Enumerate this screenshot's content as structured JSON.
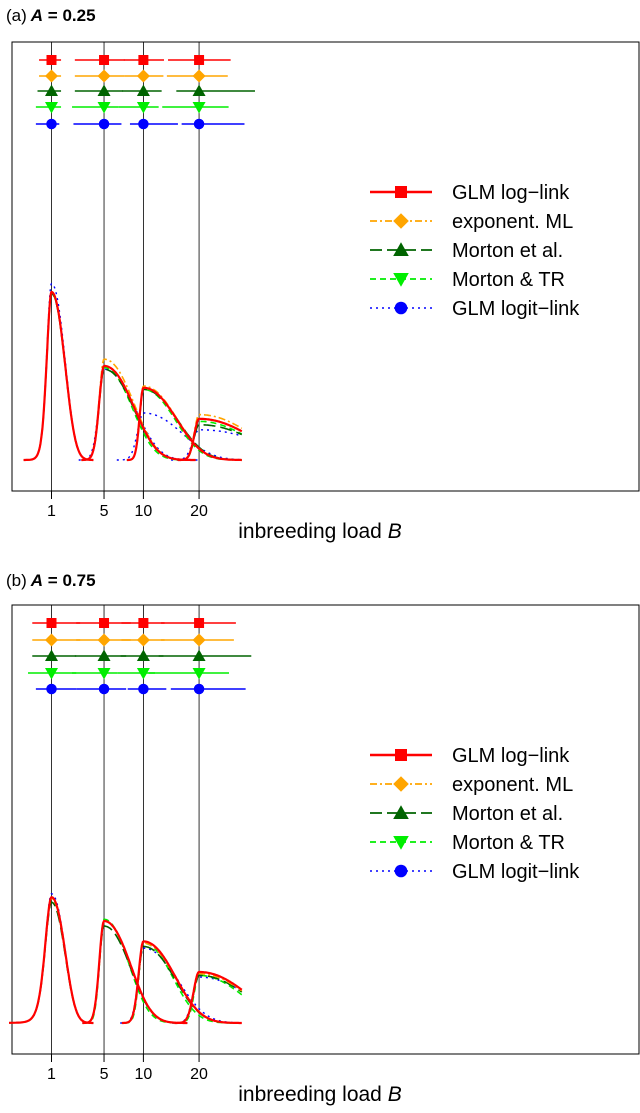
{
  "x_axis_label": "inbreeding load",
  "x_axis_symbol": "B",
  "methods": [
    {
      "name": "GLM log−link",
      "color": "#ff0000",
      "marker": "square",
      "dash": "",
      "width": 2.2
    },
    {
      "name": "exponent. ML",
      "color": "#ffa500",
      "marker": "diamond",
      "dash": "7,3,2,3",
      "width": 1.6
    },
    {
      "name": "Morton et al.",
      "color": "#006400",
      "marker": "triangle-up",
      "dash": "12,5",
      "width": 1.6
    },
    {
      "name": "Morton & TR",
      "color": "#00ee00",
      "marker": "triangle-down",
      "dash": "6,4",
      "width": 1.6
    },
    {
      "name": "GLM logit−link",
      "color": "#0000ff",
      "marker": "circle",
      "dash": "2,4",
      "width": 1.4
    }
  ],
  "chart_data": [
    {
      "type": "line",
      "panel_letter": "(a)",
      "title_var": "A",
      "title_value": "= 0.25",
      "xlabel": "inbreeding load B",
      "ylabel": "",
      "x_scale": "sqrt",
      "xlim": [
        0,
        30
      ],
      "x_ticks": [
        1,
        5,
        10,
        20
      ],
      "true_values": [
        1,
        5,
        10,
        20
      ],
      "legend_position": "right",
      "intervals": [
        [
          [
            1,
            0.5,
            1.5
          ],
          [
            5,
            2.4,
            7.4
          ],
          [
            10,
            7.3,
            13.3
          ],
          [
            20,
            14.0,
            27.2
          ]
        ],
        [
          [
            1,
            0.5,
            1.5
          ],
          [
            5,
            2.4,
            7.4
          ],
          [
            10,
            7.4,
            13.2
          ],
          [
            20,
            13.8,
            26.5
          ]
        ],
        [
          [
            1,
            0.45,
            1.5
          ],
          [
            5,
            2.4,
            7.2
          ],
          [
            10,
            7.1,
            12.9
          ],
          [
            20,
            15.5,
            33.5
          ]
        ],
        [
          [
            1,
            0.4,
            1.5
          ],
          [
            5,
            2.2,
            6.6
          ],
          [
            10,
            6.6,
            12.4
          ],
          [
            20,
            13.0,
            26.7
          ]
        ],
        [
          [
            1,
            0.4,
            1.4
          ],
          [
            5,
            2.3,
            7.0
          ],
          [
            10,
            8.1,
            15.8
          ],
          [
            20,
            16.5,
            30.7
          ]
        ]
      ],
      "densities": [
        [
          [
            1,
            1.0,
            0.21,
            0.7
          ],
          [
            5,
            0.56,
            0.5,
            3.4
          ],
          [
            10,
            0.43,
            0.55,
            5.2
          ],
          [
            20,
            0.245,
            1.0,
            11.8
          ]
        ],
        [
          [
            1,
            1.0,
            0.21,
            0.7
          ],
          [
            5,
            0.6,
            0.5,
            3.4
          ],
          [
            10,
            0.44,
            0.55,
            5.2
          ],
          [
            20,
            0.27,
            1.0,
            11.8
          ]
        ],
        [
          [
            1,
            0.99,
            0.21,
            0.7
          ],
          [
            5,
            0.54,
            0.5,
            3.4
          ],
          [
            10,
            0.42,
            0.55,
            5.4
          ],
          [
            20,
            0.21,
            1.05,
            12.4
          ]
        ],
        [
          [
            1,
            0.99,
            0.21,
            0.7
          ],
          [
            5,
            0.55,
            0.5,
            3.2
          ],
          [
            10,
            0.42,
            0.55,
            5.0
          ],
          [
            20,
            0.23,
            0.98,
            11.2
          ]
        ],
        [
          [
            1,
            1.05,
            0.21,
            0.7
          ],
          [
            5,
            0.54,
            0.55,
            3.6
          ],
          [
            10,
            0.28,
            0.85,
            6.2
          ],
          [
            20,
            0.18,
            1.3,
            14.8
          ]
        ]
      ]
    },
    {
      "type": "line",
      "panel_letter": "(b)",
      "title_var": "A",
      "title_value": "= 0.75",
      "xlabel": "inbreeding load B",
      "ylabel": "",
      "x_scale": "sqrt",
      "xlim": [
        0,
        30
      ],
      "x_ticks": [
        1,
        5,
        10,
        20
      ],
      "true_values": [
        1,
        5,
        10,
        20
      ],
      "legend_position": "right",
      "intervals": [
        [
          [
            1,
            0.3,
            2.8
          ],
          [
            5,
            2.5,
            8.2
          ],
          [
            10,
            7.0,
            13.4
          ],
          [
            20,
            12.8,
            28.5
          ]
        ],
        [
          [
            1,
            0.3,
            2.8
          ],
          [
            5,
            2.5,
            8.2
          ],
          [
            10,
            7.0,
            13.4
          ],
          [
            20,
            12.8,
            28.0
          ]
        ],
        [
          [
            1,
            0.3,
            2.5
          ],
          [
            5,
            2.4,
            7.6
          ],
          [
            10,
            6.9,
            13.2
          ],
          [
            20,
            12.4,
            32.5
          ]
        ],
        [
          [
            1,
            0.2,
            2.5
          ],
          [
            5,
            2.2,
            6.5
          ],
          [
            10,
            6.5,
            11.8
          ],
          [
            20,
            10.8,
            26.8
          ]
        ],
        [
          [
            1,
            0.4,
            2.5
          ],
          [
            5,
            2.5,
            7.6
          ],
          [
            10,
            7.8,
            13.7
          ],
          [
            20,
            14.5,
            31.0
          ]
        ]
      ],
      "densities": [
        [
          [
            1,
            0.74,
            0.28,
            0.7
          ],
          [
            5,
            0.6,
            0.48,
            3.0
          ],
          [
            10,
            0.48,
            0.7,
            5.0
          ],
          [
            20,
            0.3,
            1.15,
            10.8
          ]
        ],
        [
          [
            1,
            0.73,
            0.28,
            0.7
          ],
          [
            5,
            0.6,
            0.48,
            3.0
          ],
          [
            10,
            0.47,
            0.7,
            5.0
          ],
          [
            20,
            0.29,
            1.15,
            10.8
          ]
        ],
        [
          [
            1,
            0.71,
            0.28,
            0.7
          ],
          [
            5,
            0.57,
            0.48,
            3.0
          ],
          [
            10,
            0.45,
            0.7,
            5.0
          ],
          [
            20,
            0.28,
            1.15,
            10.8
          ]
        ],
        [
          [
            1,
            0.73,
            0.28,
            0.7
          ],
          [
            5,
            0.61,
            0.45,
            2.8
          ],
          [
            10,
            0.47,
            0.65,
            4.6
          ],
          [
            20,
            0.28,
            1.05,
            9.8
          ]
        ],
        [
          [
            1,
            0.76,
            0.28,
            0.7
          ],
          [
            5,
            0.6,
            0.48,
            3.0
          ],
          [
            10,
            0.44,
            0.75,
            5.5
          ],
          [
            20,
            0.27,
            1.25,
            11.6
          ]
        ]
      ]
    }
  ]
}
